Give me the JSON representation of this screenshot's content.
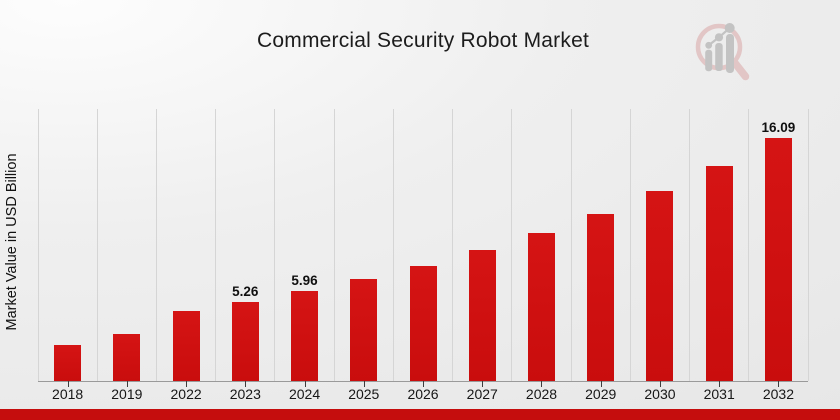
{
  "title": "Commercial Security Robot Market",
  "branding": {
    "logo_icon": "magnifier-bar-chart-logo",
    "logo_ring_color": "#e2c6c6",
    "logo_bar_color": "#c3c3c3"
  },
  "colors": {
    "bar": "#cb0e0e",
    "footer_band": "#c50d0d",
    "gridline": "#d5d5d5",
    "axis_line": "#9a9a9a"
  },
  "footer": {
    "band_color": "#c50d0d"
  },
  "chart_data": {
    "type": "bar",
    "title": "Commercial Security Robot Market",
    "xlabel": "",
    "ylabel": "Market Value in USD Billion",
    "categories": [
      "2018",
      "2019",
      "2022",
      "2023",
      "2024",
      "2025",
      "2026",
      "2027",
      "2028",
      "2029",
      "2030",
      "2031",
      "2032"
    ],
    "values": [
      2.4,
      3.1,
      4.65,
      5.26,
      5.96,
      6.75,
      7.64,
      8.65,
      9.79,
      11.08,
      12.55,
      14.21,
      16.09
    ],
    "data_labels": [
      "",
      "",
      "",
      "5.26",
      "5.96",
      "",
      "",
      "",
      "",
      "",
      "",
      "",
      "16.09"
    ],
    "ylim": [
      0,
      18
    ],
    "grid": "vertical",
    "legend": "none",
    "bar_color": "#cb0e0e"
  }
}
